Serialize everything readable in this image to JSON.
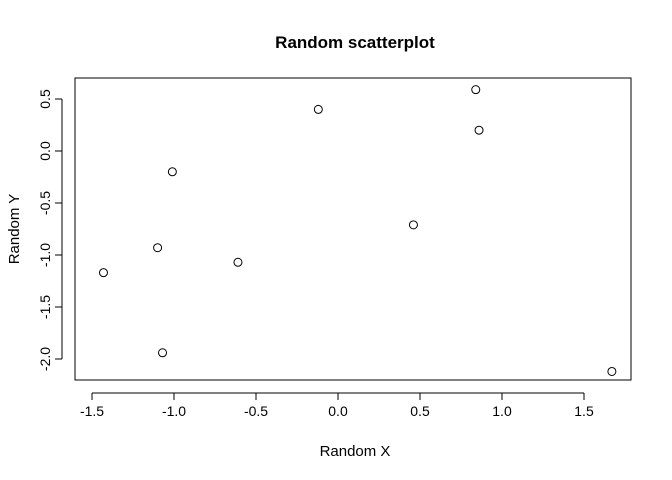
{
  "chart_data": {
    "type": "scatter",
    "title": "Random scatterplot",
    "xlabel": "Random X",
    "ylabel": "Random Y",
    "xlim": [
      -1.5,
      1.7
    ],
    "ylim": [
      -2.2,
      0.7
    ],
    "grid": false,
    "x_ticks": [
      -1.5,
      -1.0,
      -0.5,
      0.0,
      0.5,
      1.0,
      1.5
    ],
    "x_tick_labels": [
      "-1.5",
      "-1.0",
      "-0.5",
      "0.0",
      "0.5",
      "1.0",
      "1.5"
    ],
    "y_ticks": [
      -2.0,
      -1.5,
      -1.0,
      -0.5,
      0.0,
      0.5
    ],
    "y_tick_labels": [
      "-2.0",
      "-1.5",
      "-1.0",
      "-0.5",
      "0.0",
      "0.5"
    ],
    "points": [
      {
        "x": -1.43,
        "y": -1.17
      },
      {
        "x": -1.1,
        "y": -0.93
      },
      {
        "x": -1.07,
        "y": -1.94
      },
      {
        "x": -1.01,
        "y": -0.2
      },
      {
        "x": -0.61,
        "y": -1.07
      },
      {
        "x": -0.12,
        "y": 0.4
      },
      {
        "x": 0.46,
        "y": -0.71
      },
      {
        "x": 0.84,
        "y": 0.59
      },
      {
        "x": 0.86,
        "y": 0.2
      },
      {
        "x": 1.67,
        "y": -2.12
      }
    ]
  }
}
